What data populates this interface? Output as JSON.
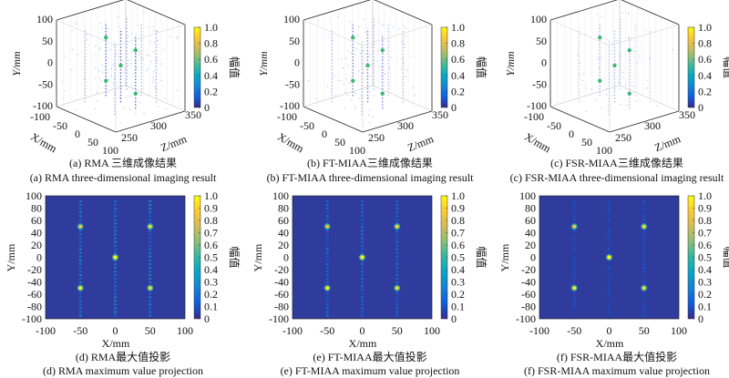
{
  "colormap": [
    "#352a87",
    "#0f5cdd",
    "#1481d6",
    "#06a4ca",
    "#2eb7a4",
    "#87bf77",
    "#d1bb59",
    "#fec832",
    "#f9fb0e"
  ],
  "heatmap_background": "#2f3c9e",
  "chart_data": [
    {
      "id": "a",
      "type": "scatter3d",
      "caption_cn": "(a) RMA 三维成像结果",
      "caption_en": "(a) RMA three-dimensional imaging result",
      "xlabel": "X/mm",
      "ylabel": "Y/mm",
      "zlabel": "Z/mm",
      "xlim": [
        -100,
        100
      ],
      "ylim": [
        -100,
        100
      ],
      "zlim": [
        250,
        350
      ],
      "xticks": [
        "-100",
        "-50",
        "0",
        "50",
        "100"
      ],
      "yticks": [
        "100",
        "50",
        "0",
        "-50",
        "-100"
      ],
      "zticks": [
        "250",
        "300",
        "350"
      ],
      "colorbar": {
        "label": "幅值",
        "ticks": [
          "1.0",
          "0.8",
          "0.6",
          "0.4",
          "0.2",
          "0"
        ]
      },
      "targets": [
        {
          "x": -50,
          "y": 50,
          "z": 300
        },
        {
          "x": 50,
          "y": 50,
          "z": 300
        },
        {
          "x": 0,
          "y": 0,
          "z": 300
        },
        {
          "x": -50,
          "y": -50,
          "z": 300
        },
        {
          "x": 50,
          "y": -50,
          "z": 300
        }
      ],
      "noise_level": 1.0
    },
    {
      "id": "b",
      "type": "scatter3d",
      "caption_cn": "(b) FT-MIAA三维成像结果",
      "caption_en": "(b) FT-MIAA three-dimensional imaging result",
      "xlabel": "X/mm",
      "ylabel": "Y/mm",
      "zlabel": "Z/mm",
      "xlim": [
        -100,
        100
      ],
      "ylim": [
        -100,
        100
      ],
      "zlim": [
        250,
        350
      ],
      "xticks": [
        "-100",
        "-50",
        "0",
        "50",
        "100"
      ],
      "yticks": [
        "100",
        "50",
        "0",
        "-50",
        "-100"
      ],
      "zticks": [
        "250",
        "300",
        "350"
      ],
      "colorbar": {
        "label": "幅值",
        "ticks": [
          "1.0",
          "0.8",
          "0.6",
          "0.4",
          "0.2",
          "0"
        ]
      },
      "targets": [
        {
          "x": -50,
          "y": 50,
          "z": 300
        },
        {
          "x": 50,
          "y": 50,
          "z": 300
        },
        {
          "x": 0,
          "y": 0,
          "z": 300
        },
        {
          "x": -50,
          "y": -50,
          "z": 300
        },
        {
          "x": 50,
          "y": -50,
          "z": 300
        }
      ],
      "noise_level": 0.8
    },
    {
      "id": "c",
      "type": "scatter3d",
      "caption_cn": "(c) FSR-MIAA三维成像结果",
      "caption_en": "(c) FSR-MIAA three-dimensional imaging result",
      "xlabel": "X/mm",
      "ylabel": "Y/mm",
      "zlabel": "Z/mm",
      "xlim": [
        -100,
        100
      ],
      "ylim": [
        -100,
        100
      ],
      "zlim": [
        250,
        350
      ],
      "xticks": [
        "-100",
        "-50",
        "0",
        "50",
        "100"
      ],
      "yticks": [
        "100",
        "50",
        "0",
        "-50",
        "-100"
      ],
      "zticks": [
        "250",
        "300",
        "350"
      ],
      "colorbar": {
        "label": "幅值",
        "ticks": [
          "1.0",
          "0.8",
          "0.6",
          "0.4",
          "0.2",
          "0"
        ]
      },
      "targets": [
        {
          "x": -50,
          "y": 50,
          "z": 300
        },
        {
          "x": 50,
          "y": 50,
          "z": 300
        },
        {
          "x": 0,
          "y": 0,
          "z": 300
        },
        {
          "x": -50,
          "y": -50,
          "z": 300
        },
        {
          "x": 50,
          "y": -50,
          "z": 300
        }
      ],
      "noise_level": 0.4
    },
    {
      "id": "d",
      "type": "heatmap",
      "caption_cn": "(d) RMA最大值投影",
      "caption_en": "(d) RMA maximum value projection",
      "xlabel": "X/mm",
      "ylabel": "Y/mm",
      "xlim": [
        -100,
        100
      ],
      "ylim": [
        -100,
        100
      ],
      "xticks": [
        "-100",
        "-50",
        "0",
        "50",
        "100"
      ],
      "yticks": [
        "100",
        "80",
        "60",
        "40",
        "20",
        "0",
        "-20",
        "-40",
        "-60",
        "-80",
        "-100"
      ],
      "colorbar": {
        "label": "幅值",
        "ticks": [
          "1.0",
          "0.9",
          "0.8",
          "0.7",
          "0.6",
          "0.5",
          "0.4",
          "0.3",
          "0.2",
          "0.1",
          "0"
        ]
      },
      "peaks": [
        {
          "x": -50,
          "y": 50,
          "v": 0.85
        },
        {
          "x": 50,
          "y": 50,
          "v": 0.9
        },
        {
          "x": 0,
          "y": 0,
          "v": 1.0
        },
        {
          "x": -50,
          "y": -50,
          "v": 0.95
        },
        {
          "x": 50,
          "y": -50,
          "v": 0.9
        }
      ],
      "stripe_level": 0.3
    },
    {
      "id": "e",
      "type": "heatmap",
      "caption_cn": "(e) FT-MIAA最大值投影",
      "caption_en": "(e) FT-MIAA maximum value projection",
      "xlabel": "X/mm",
      "ylabel": "Y/mm",
      "xlim": [
        -100,
        100
      ],
      "ylim": [
        -100,
        100
      ],
      "xticks": [
        "-100",
        "-50",
        "0",
        "50",
        "100"
      ],
      "yticks": [
        "100",
        "80",
        "60",
        "40",
        "20",
        "0",
        "-20",
        "-40",
        "-60",
        "-80",
        "-100"
      ],
      "colorbar": {
        "label": "幅值",
        "ticks": [
          "1.0",
          "0.9",
          "0.8",
          "0.7",
          "0.6",
          "0.5",
          "0.4",
          "0.3",
          "0.2",
          "0.1",
          "0"
        ]
      },
      "peaks": [
        {
          "x": -50,
          "y": 50,
          "v": 0.85
        },
        {
          "x": 50,
          "y": 50,
          "v": 0.9
        },
        {
          "x": 0,
          "y": 0,
          "v": 1.0
        },
        {
          "x": -50,
          "y": -50,
          "v": 0.95
        },
        {
          "x": 50,
          "y": -50,
          "v": 0.9
        }
      ],
      "stripe_level": 0.22
    },
    {
      "id": "f",
      "type": "heatmap",
      "caption_cn": "(f) FSR-MIAA最大值投影",
      "caption_en": "(f) FSR-MIAA maximum value projection",
      "xlabel": "X/mm",
      "ylabel": "Y/mm",
      "xlim": [
        -100,
        100
      ],
      "ylim": [
        -100,
        100
      ],
      "xticks": [
        "-100",
        "-50",
        "0",
        "50",
        "100"
      ],
      "yticks": [
        "100",
        "80",
        "60",
        "40",
        "20",
        "0",
        "-20",
        "-40",
        "-60",
        "-80",
        "-100"
      ],
      "colorbar": {
        "label": "幅值",
        "ticks": [
          "1.0",
          "0.9",
          "0.8",
          "0.7",
          "0.6",
          "0.5",
          "0.4",
          "0.3",
          "0.2",
          "0.1",
          "0"
        ]
      },
      "peaks": [
        {
          "x": -50,
          "y": 50,
          "v": 0.85
        },
        {
          "x": 50,
          "y": 50,
          "v": 0.9
        },
        {
          "x": 0,
          "y": 0,
          "v": 1.0
        },
        {
          "x": -50,
          "y": -50,
          "v": 0.95
        },
        {
          "x": 50,
          "y": -50,
          "v": 0.9
        }
      ],
      "stripe_level": 0.12
    }
  ]
}
